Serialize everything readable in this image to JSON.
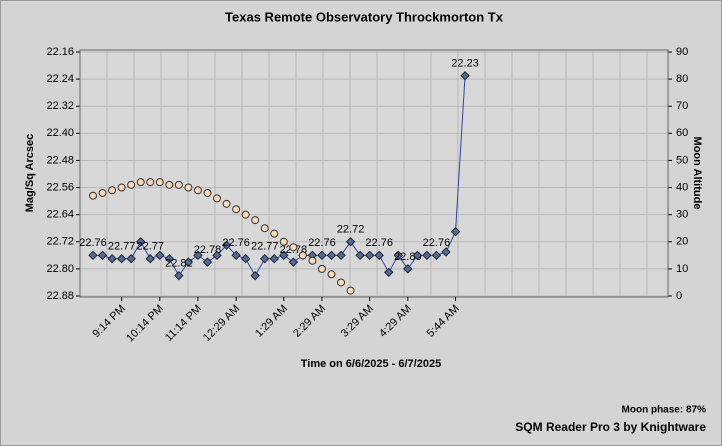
{
  "chart_data": {
    "type": "line",
    "title": "Texas Remote Observatory   Throckmorton Tx",
    "y_label": "Mag/Sq Arcsec",
    "y2_label": "Moon Altitude",
    "x_label": "Time on 6/6/2025 - 6/7/2025",
    "footer_note": "Moon phase: 87%",
    "footer_credit": "SQM Reader Pro 3 by Knightware",
    "categories": [
      null,
      null,
      null,
      "9:14 PM",
      null,
      null,
      null,
      "10:14 PM",
      null,
      null,
      null,
      "11:14 PM",
      null,
      null,
      null,
      "12:29 AM",
      null,
      null,
      null,
      null,
      "1:29 AM",
      null,
      null,
      null,
      "2:29 AM",
      null,
      null,
      null,
      null,
      "3:29 AM",
      null,
      null,
      null,
      "4:29 AM",
      null,
      null,
      null,
      null,
      "5:44 AM",
      null
    ],
    "ylim": [
      22.16,
      22.88
    ],
    "y_inverted": true,
    "yticks": [
      22.16,
      22.24,
      22.32,
      {
        "value": 22.4,
        "label": "22.40"
      },
      22.48,
      22.56,
      22.64,
      22.72,
      {
        "value": 22.8,
        "label": "22.80"
      },
      22.88
    ],
    "y2lim": [
      0,
      90
    ],
    "y2ticks": [
      0,
      10,
      20,
      30,
      40,
      50,
      60,
      70,
      80,
      90
    ],
    "grid": true,
    "series": [
      {
        "color": "#3344aa",
        "marker_color": "#4f6d96",
        "marker": "diamond",
        "line": true,
        "values": [
          22.76,
          22.76,
          22.77,
          22.77,
          22.77,
          22.72,
          22.77,
          22.76,
          22.77,
          22.82,
          22.78,
          22.76,
          22.78,
          22.76,
          22.73,
          22.76,
          22.77,
          22.82,
          22.77,
          22.77,
          22.76,
          22.78,
          22.76,
          22.76,
          22.76,
          22.76,
          22.76,
          22.72,
          22.76,
          22.76,
          22.76,
          22.81,
          22.76,
          22.8,
          22.76,
          22.76,
          22.76,
          22.75,
          22.69,
          22.23
        ],
        "value_labels": [
          "22.76",
          null,
          null,
          "22.77",
          null,
          null,
          "22.77",
          null,
          null,
          "22.82",
          null,
          null,
          "22.78",
          null,
          null,
          "22.76",
          null,
          null,
          "22.77",
          null,
          null,
          "22.78",
          null,
          null,
          "22.76",
          null,
          null,
          "22.72",
          null,
          null,
          "22.76",
          null,
          null,
          "22.80",
          null,
          null,
          "22.76",
          null,
          null,
          "22.23"
        ]
      },
      {
        "axis": "y2",
        "color": "#fcd9b6",
        "marker": "circle",
        "line": false,
        "values": [
          37,
          38,
          39,
          40,
          41,
          42,
          42,
          42,
          41,
          41,
          40,
          39,
          38,
          36,
          34,
          32,
          30,
          28,
          25,
          23,
          20,
          18,
          15,
          13,
          10,
          8,
          5,
          2,
          null,
          null,
          null,
          null,
          null,
          null,
          null,
          null,
          null,
          null,
          null,
          null
        ]
      }
    ]
  }
}
